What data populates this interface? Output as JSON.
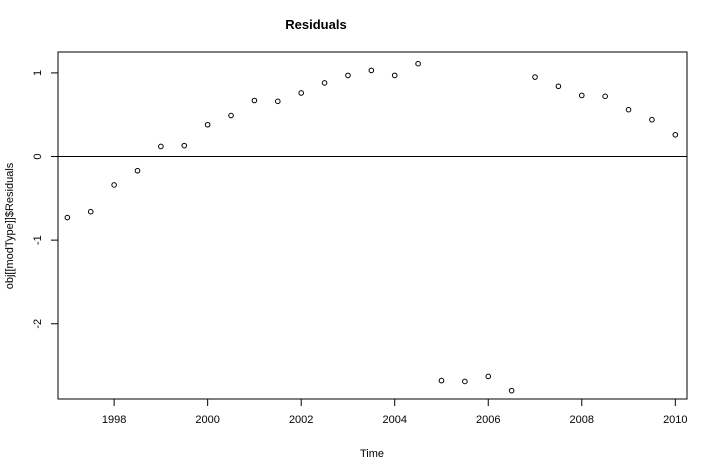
{
  "chart_data": {
    "type": "scatter",
    "title": "Residuals",
    "xlabel": "Time",
    "ylabel": "obj[[modType]]$Residuals",
    "xlim": [
      1996.8,
      2010.25
    ],
    "ylim": [
      -2.9,
      1.25
    ],
    "x_ticks": [
      1998,
      2000,
      2002,
      2004,
      2006,
      2008,
      2010
    ],
    "x_tick_labels": [
      "1998",
      "2000",
      "2002",
      "2004",
      "2006",
      "2008",
      "2010"
    ],
    "y_ticks": [
      -2,
      -1,
      0,
      1
    ],
    "y_tick_labels": [
      "-2",
      "-1",
      "0",
      "1"
    ],
    "reference_line_y": 0,
    "grid": false,
    "points": [
      {
        "x": 1997.0,
        "y": -0.73
      },
      {
        "x": 1997.5,
        "y": -0.66
      },
      {
        "x": 1998.0,
        "y": -0.34
      },
      {
        "x": 1998.5,
        "y": -0.17
      },
      {
        "x": 1999.0,
        "y": 0.12
      },
      {
        "x": 1999.5,
        "y": 0.13
      },
      {
        "x": 2000.0,
        "y": 0.38
      },
      {
        "x": 2000.5,
        "y": 0.49
      },
      {
        "x": 2001.0,
        "y": 0.67
      },
      {
        "x": 2001.5,
        "y": 0.66
      },
      {
        "x": 2002.0,
        "y": 0.76
      },
      {
        "x": 2002.5,
        "y": 0.88
      },
      {
        "x": 2003.0,
        "y": 0.97
      },
      {
        "x": 2003.5,
        "y": 1.03
      },
      {
        "x": 2004.0,
        "y": 0.97
      },
      {
        "x": 2004.5,
        "y": 1.11
      },
      {
        "x": 2005.0,
        "y": -2.68
      },
      {
        "x": 2005.5,
        "y": -2.69
      },
      {
        "x": 2006.0,
        "y": -2.63
      },
      {
        "x": 2006.5,
        "y": -2.8
      },
      {
        "x": 2007.0,
        "y": 0.95
      },
      {
        "x": 2007.5,
        "y": 0.84
      },
      {
        "x": 2008.0,
        "y": 0.73
      },
      {
        "x": 2008.5,
        "y": 0.72
      },
      {
        "x": 2009.0,
        "y": 0.56
      },
      {
        "x": 2009.5,
        "y": 0.44
      },
      {
        "x": 2010.0,
        "y": 0.26
      }
    ]
  }
}
